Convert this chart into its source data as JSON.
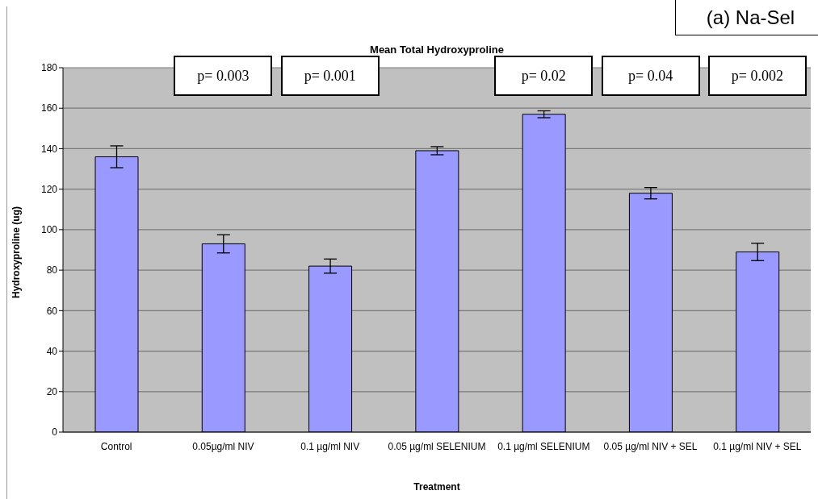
{
  "chart_data": {
    "type": "bar",
    "title": "Mean Total Hydroxyproline",
    "xlabel": "Treatment",
    "ylabel": "Hydroxyproline (ug)",
    "categories": [
      "Control",
      "0.05µg/ml NIV",
      "0.1 µg/ml NIV",
      "0.05 µg/ml SELENIUM",
      "0.1 µg/ml SELENIUM",
      "0.05 µg/ml NIV + SEL",
      "0.1 µg/ml NIV + SEL"
    ],
    "values": [
      136,
      93,
      82,
      139,
      157,
      118,
      89
    ],
    "errors": [
      5.4,
      4.5,
      3.5,
      2,
      1.7,
      2.8,
      4.3
    ],
    "color": "#9999ff",
    "ylim": [
      0,
      180
    ],
    "yticks": [
      0,
      20,
      40,
      60,
      80,
      100,
      120,
      140,
      160,
      180
    ],
    "grid": "y",
    "legend": false,
    "annotations": [
      "p= 0.003",
      "p= 0.001",
      "p= 0.02",
      "p= 0.04",
      "p= 0.002",
      "(a) Na-Sel"
    ]
  }
}
